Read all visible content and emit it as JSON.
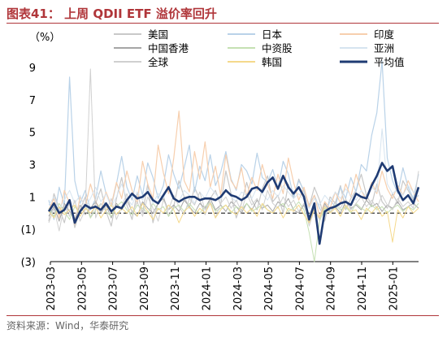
{
  "title": "图表41： 上周 QDII ETF 溢价率回升",
  "source": "资料来源：Wind，华泰研究",
  "chart_data": {
    "type": "line",
    "ylabel": "（%）",
    "ylim": [
      -3,
      10
    ],
    "yticks": [
      {
        "value": 9,
        "label": "9"
      },
      {
        "value": 7,
        "label": "7"
      },
      {
        "value": 5,
        "label": "5"
      },
      {
        "value": 3,
        "label": "3"
      },
      {
        "value": 1,
        "label": "1"
      },
      {
        "value": -1,
        "label": "(1)"
      },
      {
        "value": -3,
        "label": "(3)"
      }
    ],
    "xtick_labels": [
      "2023-03",
      "2023-05",
      "2023-07",
      "2023-09",
      "2023-11",
      "2024-01",
      "2024-03",
      "2024-05",
      "2024-07",
      "2024-09",
      "2024-11",
      "2025-01"
    ],
    "zero_line": "dashed",
    "legend_position": "top",
    "series": [
      {
        "name": "美国",
        "color": "#c8c8c8",
        "width": 1.2,
        "values": [
          -0.5,
          1.2,
          0.3,
          -0.6,
          0.8,
          -0.9,
          0.2,
          1.0,
          -0.3,
          0.6,
          1.5,
          0.1,
          -0.8,
          0.9,
          2.2,
          0.5,
          -0.4,
          1.3,
          0.0,
          1.8,
          -0.6,
          0.7,
          1.1,
          -0.2,
          0.4,
          2.0,
          1.0,
          0.3,
          1.6,
          0.8,
          -0.1,
          0.9,
          1.4,
          0.5,
          2.6,
          1.2,
          -0.3,
          0.6,
          1.9,
          0.8,
          0.2,
          1.5,
          2.3,
          0.7,
          1.1,
          0.0,
          1.8,
          0.9,
          2.1,
          1.3,
          0.4,
          1.6,
          0.8,
          -0.5,
          1.0,
          0.6,
          1.7,
          0.2,
          0.9,
          1.4,
          2.4,
          1.1,
          0.5,
          1.8,
          0.7,
          0.3,
          1.2,
          0.6,
          2.0,
          1.4,
          0.8,
          1.1
        ]
      },
      {
        "name": "日本",
        "color": "#b9d2e8",
        "width": 1.2,
        "values": [
          0.8,
          -0.4,
          1.6,
          0.5,
          8.4,
          2.0,
          0.6,
          1.4,
          0.2,
          0.9,
          2.6,
          1.2,
          0.4,
          1.8,
          3.5,
          1.6,
          0.8,
          2.3,
          1.1,
          3.1,
          2.2,
          0.9,
          1.7,
          3.6,
          2.4,
          1.5,
          2.8,
          4.2,
          1.3,
          2.9,
          2.0,
          3.6,
          1.7,
          2.5,
          3.8,
          2.1,
          1.4,
          3.0,
          2.6,
          1.8,
          3.7,
          2.2,
          1.9,
          2.7,
          1.5,
          3.2,
          2.4,
          1.0,
          2.0,
          1.4,
          0.5,
          1.1,
          0.3,
          -0.2,
          0.8,
          0.4,
          1.6,
          0.9,
          2.2,
          1.3,
          3.0,
          2.6,
          4.8,
          6.2,
          9.4,
          3.4,
          2.0,
          1.2,
          2.8,
          1.6,
          0.9,
          2.4
        ]
      },
      {
        "name": "印度",
        "color": "#f7cfae",
        "width": 1.2,
        "values": [
          0.2,
          0.9,
          -0.3,
          1.4,
          0.6,
          -0.7,
          1.0,
          0.4,
          1.8,
          0.7,
          0.2,
          1.3,
          0.5,
          1.9,
          0.9,
          2.6,
          1.4,
          0.6,
          3.2,
          1.8,
          0.9,
          4.2,
          2.5,
          1.2,
          3.4,
          6.3,
          2.0,
          1.3,
          3.8,
          2.1,
          4.4,
          1.6,
          2.9,
          1.1,
          3.6,
          2.0,
          1.5,
          2.8,
          1.0,
          2.2,
          1.4,
          3.0,
          1.8,
          0.9,
          2.4,
          1.2,
          3.4,
          1.9,
          0.8,
          1.6,
          0.4,
          1.1,
          -0.2,
          0.7,
          0.3,
          1.3,
          0.6,
          1.8,
          1.0,
          2.4,
          1.4,
          0.8,
          1.9,
          1.2,
          2.6,
          1.5,
          0.9,
          1.7,
          1.1,
          2.0,
          1.3,
          0.7
        ]
      },
      {
        "name": "中国香港",
        "color": "#a6a6a6",
        "width": 1.0,
        "values": [
          -0.2,
          0.4,
          -0.5,
          0.6,
          0.1,
          -0.4,
          0.5,
          -0.1,
          0.3,
          0.7,
          0.0,
          0.5,
          -0.3,
          0.6,
          0.2,
          0.8,
          0.1,
          -0.2,
          0.7,
          0.3,
          0.0,
          0.6,
          0.9,
          0.2,
          0.5,
          0.1,
          0.8,
          0.4,
          0.0,
          0.6,
          0.3,
          0.9,
          0.2,
          0.5,
          0.1,
          0.7,
          0.4,
          0.0,
          0.6,
          0.2,
          0.8,
          0.3,
          0.5,
          0.1,
          0.7,
          0.4,
          0.9,
          0.2,
          0.0,
          0.5,
          -0.6,
          0.3,
          -0.4,
          0.6,
          0.1,
          0.4,
          0.0,
          0.7,
          0.3,
          0.5,
          0.2,
          0.8,
          0.4,
          0.6,
          0.1,
          0.5,
          0.3,
          0.7,
          0.2,
          0.4,
          0.6,
          0.3
        ]
      },
      {
        "name": "中资股",
        "color": "#c5e0b3",
        "width": 1.0,
        "values": [
          0.3,
          -0.2,
          0.6,
          0.1,
          -0.4,
          0.4,
          0.0,
          0.5,
          -0.3,
          0.2,
          0.6,
          0.1,
          -0.2,
          0.4,
          0.7,
          0.2,
          -0.1,
          0.5,
          0.3,
          0.0,
          0.6,
          0.2,
          0.4,
          -0.2,
          0.3,
          0.5,
          0.1,
          0.6,
          0.2,
          0.0,
          0.4,
          0.7,
          0.1,
          0.3,
          0.5,
          0.0,
          0.4,
          0.2,
          0.6,
          0.1,
          0.3,
          0.5,
          0.2,
          0.0,
          0.4,
          0.6,
          0.1,
          0.3,
          0.7,
          0.2,
          -1.2,
          -3.0,
          -0.5,
          0.3,
          0.1,
          0.5,
          0.2,
          0.4,
          0.0,
          0.6,
          0.3,
          0.1,
          0.5,
          0.2,
          0.4,
          0.0,
          0.3,
          0.5,
          0.1,
          0.4,
          0.2,
          0.6
        ]
      },
      {
        "name": "亚洲",
        "color": "#d6e4f0",
        "width": 1.0,
        "values": [
          0.5,
          1.0,
          0.2,
          0.8,
          1.4,
          0.6,
          1.1,
          0.3,
          0.9,
          1.6,
          0.7,
          1.2,
          0.4,
          1.0,
          1.8,
          0.9,
          0.5,
          1.3,
          0.8,
          1.5,
          0.6,
          1.2,
          0.9,
          1.7,
          1.0,
          0.7,
          1.4,
          1.1,
          0.6,
          1.3,
          0.9,
          1.6,
          1.2,
          0.8,
          1.5,
          1.0,
          0.7,
          1.3,
          1.1,
          0.9,
          1.6,
          1.2,
          0.8,
          1.4,
          1.0,
          1.7,
          1.3,
          0.9,
          1.2,
          0.8,
          0.3,
          0.9,
          0.5,
          1.1,
          0.7,
          1.3,
          0.9,
          1.5,
          1.1,
          0.8,
          1.4,
          1.0,
          1.6,
          1.3,
          5.2,
          1.8,
          1.2,
          1.5,
          1.1,
          1.7,
          1.3,
          1.0
        ]
      },
      {
        "name": "全球",
        "color": "#d0d0d0",
        "width": 1.0,
        "values": [
          -0.6,
          0.3,
          -1.1,
          0.5,
          -0.2,
          0.8,
          -0.5,
          0.2,
          8.9,
          -0.3,
          0.6,
          0.1,
          0.9,
          -0.4,
          0.4,
          1.2,
          0.0,
          0.7,
          -0.2,
          1.0,
          0.3,
          -0.5,
          0.8,
          0.2,
          1.1,
          0.4,
          -0.1,
          0.9,
          0.5,
          1.3,
          0.2,
          0.7,
          -0.3,
          0.6,
          1.0,
          0.3,
          0.8,
          0.1,
          1.2,
          0.5,
          0.9,
          0.2,
          1.4,
          0.6,
          0.3,
          1.0,
          0.4,
          0.8,
          0.1,
          0.6,
          -0.8,
          0.2,
          -0.4,
          0.5,
          0.0,
          0.7,
          0.3,
          0.9,
          0.2,
          0.6,
          1.0,
          0.4,
          0.8,
          0.3,
          1.1,
          0.5,
          0.2,
          0.9,
          0.4,
          0.7,
          0.3,
          2.6
        ]
      },
      {
        "name": "韩国",
        "color": "#f5d98b",
        "width": 1.0,
        "values": [
          0.1,
          -0.3,
          0.4,
          -0.1,
          0.2,
          0.5,
          -0.2,
          0.3,
          0.0,
          0.4,
          -0.3,
          0.2,
          0.5,
          -0.1,
          0.3,
          0.0,
          0.4,
          -0.2,
          0.6,
          0.1,
          -0.4,
          0.3,
          0.0,
          0.5,
          0.2,
          -0.6,
          0.1,
          0.4,
          -0.2,
          0.3,
          0.0,
          0.6,
          -0.3,
          0.2,
          0.5,
          0.1,
          -0.1,
          0.4,
          0.0,
          0.3,
          -0.2,
          0.6,
          0.2,
          0.0,
          0.4,
          -0.3,
          0.3,
          0.1,
          0.5,
          -0.1,
          -0.6,
          0.2,
          -0.3,
          0.4,
          0.0,
          0.3,
          -0.2,
          0.5,
          0.1,
          0.2,
          -0.4,
          0.3,
          0.0,
          0.4,
          -0.2,
          0.1,
          -1.8,
          0.2,
          -0.3,
          0.4,
          0.0,
          0.3
        ]
      },
      {
        "name": "平均值",
        "color": "#1f3b73",
        "width": 2.6,
        "values": [
          0.1,
          0.6,
          0.0,
          0.2,
          0.8,
          -0.6,
          0.1,
          0.5,
          0.3,
          0.4,
          0.2,
          0.6,
          0.1,
          0.4,
          0.3,
          0.8,
          1.2,
          0.9,
          1.0,
          1.3,
          0.8,
          0.6,
          1.1,
          1.6,
          0.9,
          0.7,
          0.9,
          1.0,
          1.0,
          0.8,
          0.9,
          0.9,
          0.8,
          1.0,
          1.4,
          1.1,
          1.0,
          0.8,
          1.0,
          1.5,
          1.6,
          1.3,
          1.9,
          2.2,
          1.5,
          2.3,
          1.6,
          1.2,
          1.6,
          1.0,
          -0.4,
          0.6,
          -1.9,
          0.1,
          0.3,
          0.4,
          0.6,
          0.7,
          0.5,
          1.2,
          1.0,
          0.9,
          1.7,
          2.3,
          3.1,
          2.6,
          2.9,
          1.4,
          0.8,
          1.1,
          0.6,
          1.6
        ]
      }
    ]
  }
}
